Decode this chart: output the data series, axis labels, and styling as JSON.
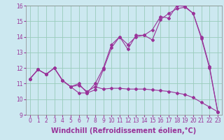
{
  "xlabel": "Windchill (Refroidissement éolien,°C)",
  "bg_color": "#cce8f0",
  "line_color": "#993399",
  "grid_color": "#99ccbb",
  "series1_y": [
    11.3,
    11.9,
    11.6,
    12.0,
    11.2,
    10.8,
    10.9,
    10.5,
    10.8,
    10.65,
    10.7,
    10.7,
    10.65,
    10.65,
    10.65,
    10.6,
    10.55,
    10.5,
    10.4,
    10.3,
    10.1,
    9.8,
    9.5,
    9.2
  ],
  "series2_y": [
    11.3,
    11.9,
    11.6,
    12.0,
    11.2,
    10.8,
    11.0,
    10.4,
    11.0,
    12.0,
    13.5,
    14.0,
    13.5,
    14.0,
    14.1,
    13.8,
    15.1,
    15.5,
    15.8,
    15.9,
    15.5,
    13.9,
    12.0,
    9.2
  ],
  "series3_y": [
    11.3,
    11.9,
    11.6,
    12.0,
    11.2,
    10.8,
    10.4,
    10.4,
    10.6,
    11.9,
    13.3,
    14.0,
    13.2,
    14.1,
    14.1,
    14.45,
    15.3,
    15.2,
    16.0,
    15.95,
    15.5,
    14.0,
    12.1,
    9.2
  ],
  "xlim": [
    -0.5,
    23.5
  ],
  "ylim": [
    9,
    16
  ],
  "xticks": [
    0,
    1,
    2,
    3,
    4,
    5,
    6,
    7,
    8,
    9,
    10,
    11,
    12,
    13,
    14,
    15,
    16,
    17,
    18,
    19,
    20,
    21,
    22,
    23
  ],
  "yticks": [
    9,
    10,
    11,
    12,
    13,
    14,
    15,
    16
  ],
  "tick_fontsize": 5.5,
  "xlabel_fontsize": 7.0,
  "marker": "D",
  "marker_size": 2.0,
  "linewidth": 0.8
}
